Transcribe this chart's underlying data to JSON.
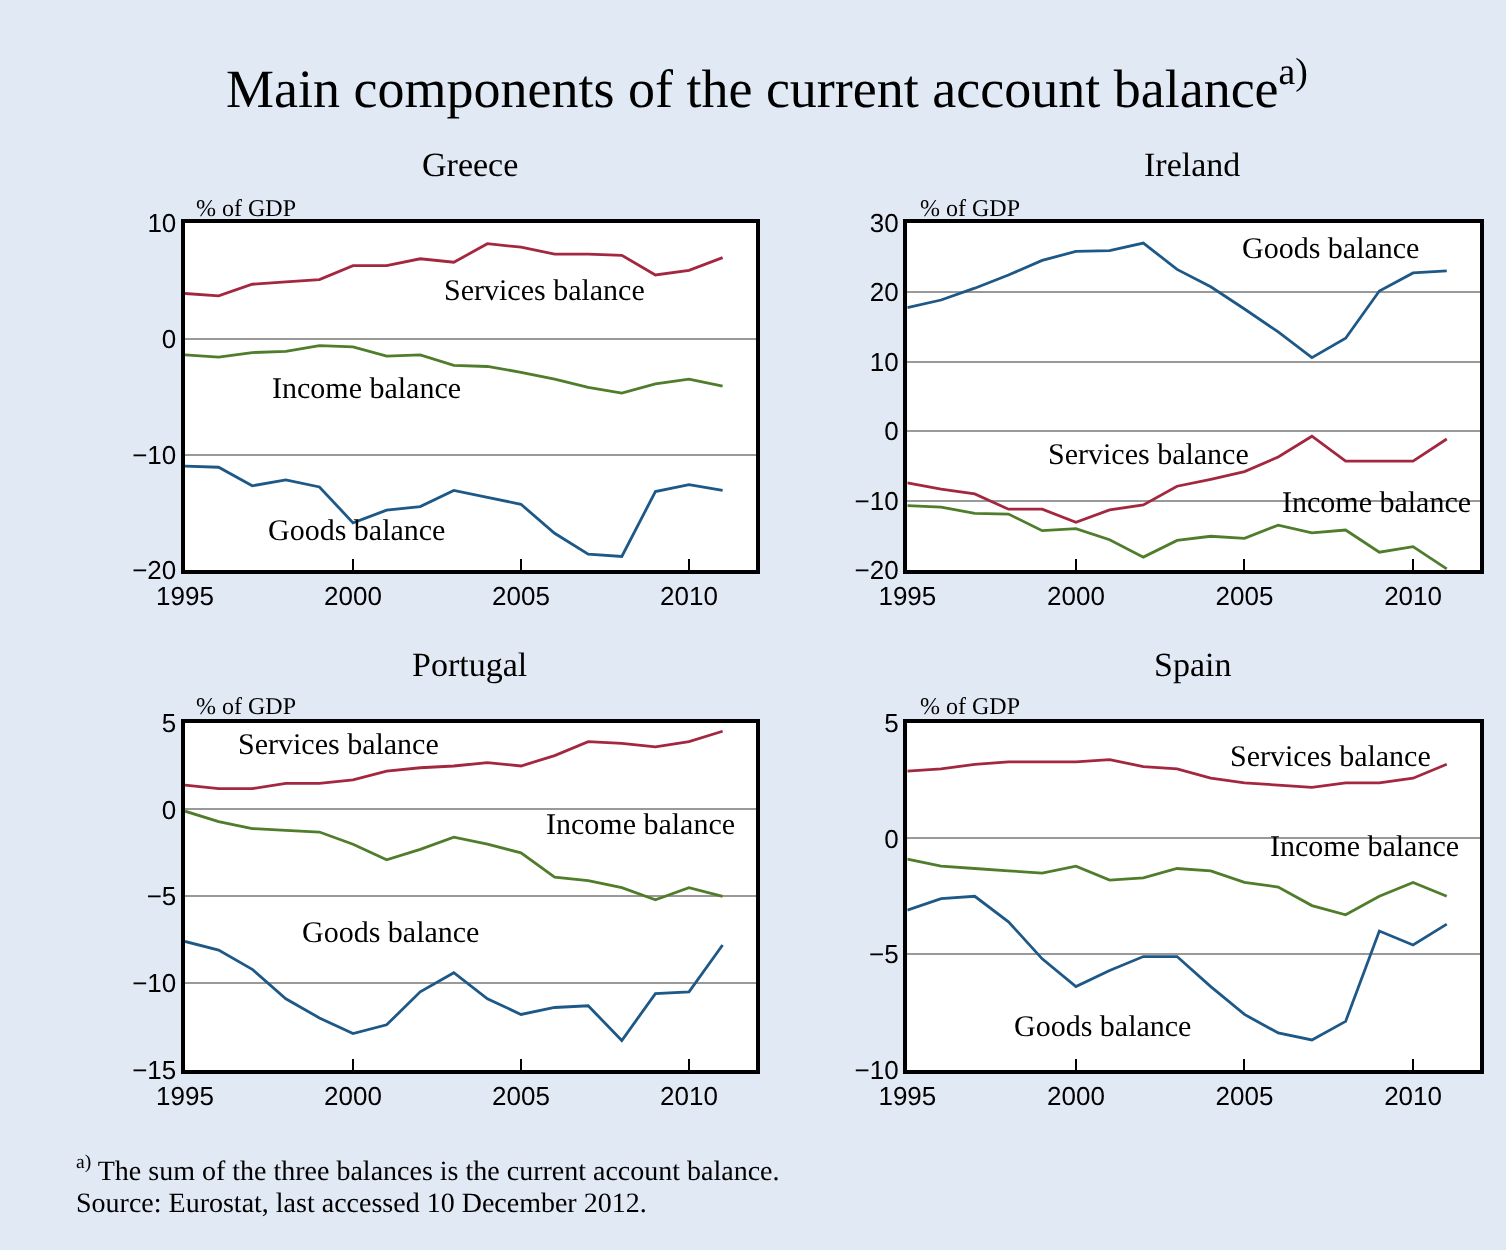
{
  "chart_data": [
    {
      "type": "other",
      "title": "Main components of the current account balance$^{a)}$",
      "annotations": [
        "$^{a)}$ The sum of the three balances is the current account balance.",
        "Source: Eurostat, last accessed 10 December 2012."
      ]
    },
    {
      "type": "line",
      "title": "Greece",
      "ylabel": "% of GDP",
      "x": [
        1995,
        1996,
        1997,
        1998,
        1999,
        2000,
        2001,
        2002,
        2003,
        2004,
        2005,
        2006,
        2007,
        2008,
        2009,
        2010,
        2011
      ],
      "xlim": [
        1995,
        2012
      ],
      "xticks": [
        1995,
        2000,
        2005,
        2010
      ],
      "ylim": [
        -20,
        10
      ],
      "yticks": [
        -20,
        -10,
        0,
        10
      ],
      "grid": "y",
      "series": [
        {
          "name": "Services balance",
          "color": "#a3283f",
          "values": [
            3.9,
            3.7,
            4.7,
            4.9,
            5.1,
            6.3,
            6.3,
            6.9,
            6.6,
            8.2,
            7.9,
            7.3,
            7.3,
            7.2,
            5.5,
            5.9,
            7.0
          ]
        },
        {
          "name": "Income balance",
          "color": "#4f7d2c",
          "values": [
            -1.4,
            -1.6,
            -1.2,
            -1.1,
            -0.6,
            -0.7,
            -1.5,
            -1.4,
            -2.3,
            -2.4,
            -2.9,
            -3.5,
            -4.2,
            -4.7,
            -3.9,
            -3.5,
            -4.1
          ]
        },
        {
          "name": "Goods balance",
          "color": "#1d5887",
          "values": [
            -11.0,
            -11.1,
            -12.7,
            -12.2,
            -12.8,
            -15.9,
            -14.8,
            -14.5,
            -13.1,
            -13.7,
            -14.3,
            -16.8,
            -18.6,
            -18.8,
            -13.2,
            -12.6,
            -13.1
          ]
        }
      ]
    },
    {
      "type": "line",
      "title": "Ireland",
      "ylabel": "% of GDP",
      "x": [
        1995,
        1996,
        1997,
        1998,
        1999,
        2000,
        2001,
        2002,
        2003,
        2004,
        2005,
        2006,
        2007,
        2008,
        2009,
        2010,
        2011
      ],
      "xlim": [
        1995,
        2012
      ],
      "xticks": [
        1995,
        2000,
        2005,
        2010
      ],
      "ylim": [
        -20,
        30
      ],
      "yticks": [
        -20,
        -10,
        0,
        10,
        20,
        30
      ],
      "grid": "y",
      "series": [
        {
          "name": "Goods balance",
          "color": "#1d5887",
          "values": [
            17.8,
            18.9,
            20.6,
            22.5,
            24.6,
            25.9,
            26.0,
            27.1,
            23.3,
            20.8,
            17.6,
            14.3,
            10.6,
            13.4,
            20.2,
            22.8,
            23.1
          ]
        },
        {
          "name": "Services balance",
          "color": "#a3283f",
          "values": [
            -7.4,
            -8.3,
            -9.0,
            -11.2,
            -11.2,
            -13.1,
            -11.3,
            -10.6,
            -7.9,
            -6.9,
            -5.8,
            -3.7,
            -0.7,
            -4.3,
            -4.3,
            -4.3,
            -1.1
          ]
        },
        {
          "name": "Income balance",
          "color": "#4f7d2c",
          "values": [
            -10.7,
            -10.9,
            -11.8,
            -11.9,
            -14.3,
            -14.0,
            -15.6,
            -18.1,
            -15.7,
            -15.1,
            -15.4,
            -13.5,
            -14.6,
            -14.2,
            -17.4,
            -16.6,
            -19.8
          ]
        }
      ]
    },
    {
      "type": "line",
      "title": "Portugal",
      "ylabel": "% of GDP",
      "x": [
        1995,
        1996,
        1997,
        1998,
        1999,
        2000,
        2001,
        2002,
        2003,
        2004,
        2005,
        2006,
        2007,
        2008,
        2009,
        2010,
        2011
      ],
      "xlim": [
        1995,
        2012
      ],
      "xticks": [
        1995,
        2000,
        2005,
        2010
      ],
      "ylim": [
        -15,
        5
      ],
      "yticks": [
        -15,
        -10,
        -5,
        0,
        5
      ],
      "grid": "y",
      "series": [
        {
          "name": "Services balance",
          "color": "#a3283f",
          "values": [
            1.4,
            1.2,
            1.2,
            1.5,
            1.5,
            1.7,
            2.2,
            2.4,
            2.5,
            2.7,
            2.5,
            3.1,
            3.9,
            3.8,
            3.6,
            3.9,
            4.5
          ]
        },
        {
          "name": "Income balance",
          "color": "#4f7d2c",
          "values": [
            -0.1,
            -0.7,
            -1.1,
            -1.2,
            -1.3,
            -2.0,
            -2.9,
            -2.3,
            -1.6,
            -2.0,
            -2.5,
            -3.9,
            -4.1,
            -4.5,
            -5.2,
            -4.5,
            -5.0
          ]
        },
        {
          "name": "Goods balance",
          "color": "#1d5887",
          "values": [
            -7.6,
            -8.1,
            -9.2,
            -10.9,
            -12.0,
            -12.9,
            -12.4,
            -10.5,
            -9.4,
            -10.9,
            -11.8,
            -11.4,
            -11.3,
            -13.3,
            -10.6,
            -10.5,
            -7.8
          ]
        }
      ]
    },
    {
      "type": "line",
      "title": "Spain",
      "ylabel": "% of GDP",
      "x": [
        1995,
        1996,
        1997,
        1998,
        1999,
        2000,
        2001,
        2002,
        2003,
        2004,
        2005,
        2006,
        2007,
        2008,
        2009,
        2010,
        2011
      ],
      "xlim": [
        1995,
        2012
      ],
      "xticks": [
        1995,
        2000,
        2005,
        2010
      ],
      "ylim": [
        -10,
        5
      ],
      "yticks": [
        -10,
        -5,
        0,
        5
      ],
      "grid": "y",
      "series": [
        {
          "name": "Services balance",
          "color": "#a3283f",
          "values": [
            2.9,
            3.0,
            3.2,
            3.3,
            3.3,
            3.3,
            3.4,
            3.1,
            3.0,
            2.6,
            2.4,
            2.3,
            2.2,
            2.4,
            2.4,
            2.6,
            3.2
          ]
        },
        {
          "name": "Income balance",
          "color": "#4f7d2c",
          "values": [
            -0.9,
            -1.2,
            -1.3,
            -1.4,
            -1.5,
            -1.2,
            -1.8,
            -1.7,
            -1.3,
            -1.4,
            -1.9,
            -2.1,
            -2.9,
            -3.3,
            -2.5,
            -1.9,
            -2.5
          ]
        },
        {
          "name": "Goods balance",
          "color": "#1d5887",
          "values": [
            -3.1,
            -2.6,
            -2.5,
            -3.6,
            -5.2,
            -6.4,
            -5.7,
            -5.1,
            -5.1,
            -6.4,
            -7.6,
            -8.4,
            -8.7,
            -7.9,
            -4.0,
            -4.6,
            -3.7
          ]
        }
      ]
    }
  ]
}
